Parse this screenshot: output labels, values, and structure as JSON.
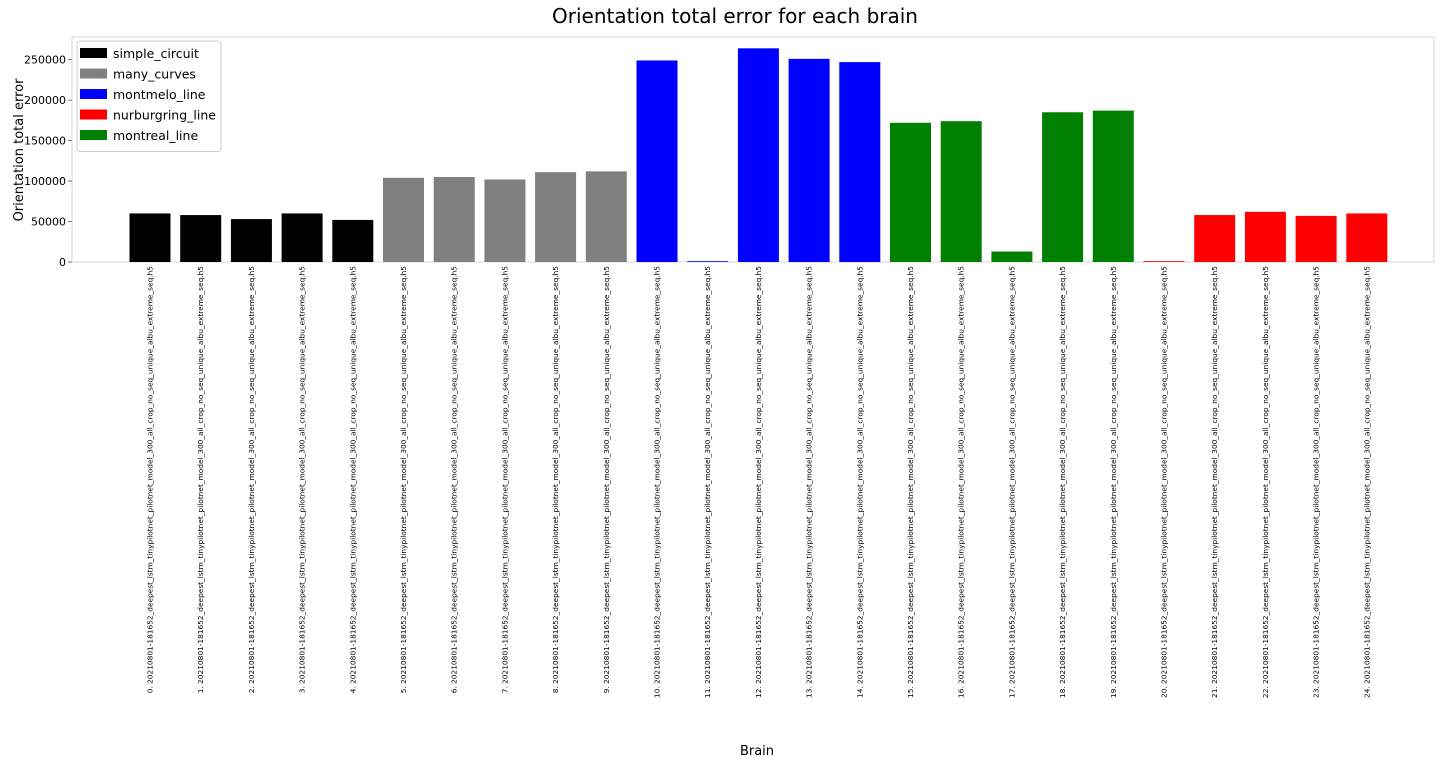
{
  "chart_data": {
    "type": "bar",
    "title": "Orientation total error for each brain",
    "xlabel": "Brain",
    "ylabel": "Orientation total error",
    "ylim": [
      0,
      278000
    ],
    "yticks": [
      0,
      50000,
      100000,
      150000,
      200000,
      250000
    ],
    "grid": false,
    "legend_position": "top-left",
    "categories": [
      "0. 20210801-181652_deepest_lstm_tinypilotnet_pilotnet_model_300_all_crop_no_seq_unique_albu_extreme_seq.h5",
      "1. 20210801-181652_deepest_lstm_tinypilotnet_pilotnet_model_300_all_crop_no_seq_unique_albu_extreme_seq.h5",
      "2. 20210801-181652_deepest_lstm_tinypilotnet_pilotnet_model_300_all_crop_no_seq_unique_albu_extreme_seq.h5",
      "3. 20210801-181652_deepest_lstm_tinypilotnet_pilotnet_model_300_all_crop_no_seq_unique_albu_extreme_seq.h5",
      "4. 20210801-181652_deepest_lstm_tinypilotnet_pilotnet_model_300_all_crop_no_seq_unique_albu_extreme_seq.h5",
      "5. 20210801-181652_deepest_lstm_tinypilotnet_pilotnet_model_300_all_crop_no_seq_unique_albu_extreme_seq.h5",
      "6. 20210801-181652_deepest_lstm_tinypilotnet_pilotnet_model_300_all_crop_no_seq_unique_albu_extreme_seq.h5",
      "7. 20210801-181652_deepest_lstm_tinypilotnet_pilotnet_model_300_all_crop_no_seq_unique_albu_extreme_seq.h5",
      "8. 20210801-181652_deepest_lstm_tinypilotnet_pilotnet_model_300_all_crop_no_seq_unique_albu_extreme_seq.h5",
      "9. 20210801-181652_deepest_lstm_tinypilotnet_pilotnet_model_300_all_crop_no_seq_unique_albu_extreme_seq.h5",
      "10. 20210801-181652_deepest_lstm_tinypilotnet_pilotnet_model_300_all_crop_no_seq_unique_albu_extreme_seq.h5",
      "11. 20210801-181652_deepest_lstm_tinypilotnet_pilotnet_model_300_all_crop_no_seq_unique_albu_extreme_seq.h5",
      "12. 20210801-181652_deepest_lstm_tinypilotnet_pilotnet_model_300_all_crop_no_seq_unique_albu_extreme_seq.h5",
      "13. 20210801-181652_deepest_lstm_tinypilotnet_pilotnet_model_300_all_crop_no_seq_unique_albu_extreme_seq.h5",
      "14. 20210801-181652_deepest_lstm_tinypilotnet_pilotnet_model_300_all_crop_no_seq_unique_albu_extreme_seq.h5",
      "15. 20210801-181652_deepest_lstm_tinypilotnet_pilotnet_model_300_all_crop_no_seq_unique_albu_extreme_seq.h5",
      "16. 20210801-181652_deepest_lstm_tinypilotnet_pilotnet_model_300_all_crop_no_seq_unique_albu_extreme_seq.h5",
      "17. 20210801-181652_deepest_lstm_tinypilotnet_pilotnet_model_300_all_crop_no_seq_unique_albu_extreme_seq.h5",
      "18. 20210801-181652_deepest_lstm_tinypilotnet_pilotnet_model_300_all_crop_no_seq_unique_albu_extreme_seq.h5",
      "19. 20210801-181652_deepest_lstm_tinypilotnet_pilotnet_model_300_all_crop_no_seq_unique_albu_extreme_seq.h5",
      "20. 20210801-181652_deepest_lstm_tinypilotnet_pilotnet_model_300_all_crop_no_seq_unique_albu_extreme_seq.h5",
      "21. 20210801-181652_deepest_lstm_tinypilotnet_pilotnet_model_300_all_crop_no_seq_unique_albu_extreme_seq.h5",
      "22. 20210801-181652_deepest_lstm_tinypilotnet_pilotnet_model_300_all_crop_no_seq_unique_albu_extreme_seq.h5",
      "23. 20210801-181652_deepest_lstm_tinypilotnet_pilotnet_model_300_all_crop_no_seq_unique_albu_extreme_seq.h5",
      "24. 20210801-181652_deepest_lstm_tinypilotnet_pilotnet_model_300_all_crop_no_seq_unique_albu_extreme_seq.h5"
    ],
    "values": [
      60000,
      58000,
      53000,
      60000,
      52000,
      104000,
      105000,
      102000,
      111000,
      112000,
      249000,
      1000,
      264000,
      251000,
      247000,
      172000,
      174000,
      13000,
      185000,
      187000,
      1000,
      58000,
      62000,
      57000,
      60000
    ],
    "bar_series": [
      "simple_circuit",
      "simple_circuit",
      "simple_circuit",
      "simple_circuit",
      "simple_circuit",
      "many_curves",
      "many_curves",
      "many_curves",
      "many_curves",
      "many_curves",
      "montmelo_line",
      "montmelo_line",
      "montmelo_line",
      "montmelo_line",
      "montmelo_line",
      "montreal_line",
      "montreal_line",
      "montreal_line",
      "montreal_line",
      "montreal_line",
      "nurburgring_line",
      "nurburgring_line",
      "nurburgring_line",
      "nurburgring_line",
      "nurburgring_line"
    ],
    "series": [
      {
        "name": "simple_circuit",
        "color": "#000000"
      },
      {
        "name": "many_curves",
        "color": "#808080"
      },
      {
        "name": "montmelo_line",
        "color": "#0000ff"
      },
      {
        "name": "nurburgring_line",
        "color": "#ff0000"
      },
      {
        "name": "montreal_line",
        "color": "#008000"
      }
    ]
  }
}
